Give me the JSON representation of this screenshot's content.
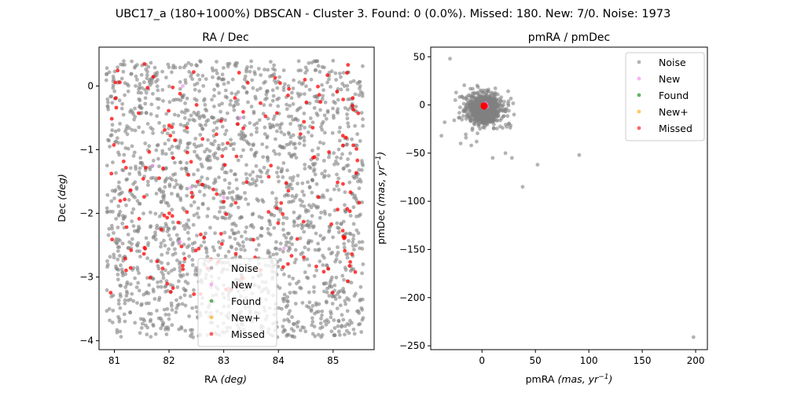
{
  "suptitle": "UBC17_a (180+1000%) DBSCAN - Cluster 3. Found: 0 (0.0%). Missed: 180. New: 7/0. Noise: 1973",
  "legend_labels": [
    "Noise",
    "New",
    "Found",
    "New+",
    "Missed"
  ],
  "colors": {
    "noise": "#808080",
    "new": "#ee82ee",
    "found": "#008000",
    "new_plus": "#ffa500",
    "missed": "#ff0000"
  },
  "chart_data": [
    {
      "type": "scatter",
      "title": "RA / Dec",
      "xlabel": "RA ",
      "xlabel_unit": "deg",
      "ylabel": "Dec ",
      "ylabel_unit": "deg",
      "xlim": [
        80.72,
        85.75
      ],
      "ylim": [
        -4.14,
        0.61
      ],
      "xticks": [
        81,
        82,
        83,
        84,
        85
      ],
      "yticks": [
        0,
        -1,
        -2,
        -3,
        -4
      ],
      "xtick_labels": [
        "81",
        "82",
        "83",
        "84",
        "85"
      ],
      "ytick_labels": [
        "0",
        "−1",
        "−2",
        "−3",
        "−4"
      ],
      "legend_position": "lower center",
      "grid": false,
      "series": [
        {
          "name": "Noise",
          "key": "noise",
          "count": 1973,
          "region": {
            "x": [
              80.85,
              85.55
            ],
            "y": [
              -3.95,
              0.4
            ]
          }
        },
        {
          "name": "New",
          "key": "new",
          "points": [
            [
              82.25,
              0.0
            ],
            [
              82.2,
              -2.45
            ],
            [
              83.3,
              -0.5
            ],
            [
              81.7,
              -1.25
            ],
            [
              84.1,
              -2.55
            ],
            [
              83.0,
              -1.75
            ],
            [
              82.4,
              -1.6
            ]
          ]
        },
        {
          "name": "Found",
          "key": "found",
          "points": []
        },
        {
          "name": "New+",
          "key": "new_plus",
          "points": []
        },
        {
          "name": "Missed",
          "key": "missed",
          "count": 180,
          "region": {
            "x": [
              80.9,
              85.5
            ],
            "y": [
              -3.3,
              0.38
            ]
          }
        }
      ]
    },
    {
      "type": "scatter",
      "title": "pmRA / pmDec",
      "xlabel": "pmRA ",
      "xlabel_unit": "mas, yr",
      "ylabel": "pmDec ",
      "ylabel_unit": "mas, yr",
      "xlim": [
        -48,
        211
      ],
      "ylim": [
        -254,
        60
      ],
      "xticks": [
        0,
        50,
        100,
        150,
        200
      ],
      "yticks": [
        50,
        0,
        -50,
        -100,
        -150,
        -200,
        -250
      ],
      "xtick_labels": [
        "0",
        "50",
        "100",
        "150",
        "200"
      ],
      "ytick_labels": [
        "50",
        "0",
        "−50",
        "−100",
        "−150",
        "−200",
        "−250"
      ],
      "legend_position": "upper right",
      "grid": false,
      "series": [
        {
          "name": "Noise",
          "key": "noise",
          "count": 1973,
          "core": {
            "x": 2,
            "y": -5
          },
          "outliers": [
            [
              -30,
              48
            ],
            [
              -35,
              -18
            ],
            [
              -38,
              -32
            ],
            [
              -26,
              -16
            ],
            [
              -20,
              -40
            ],
            [
              -15,
              -34
            ],
            [
              22,
              -50
            ],
            [
              28,
              -55
            ],
            [
              38,
              -85
            ],
            [
              52,
              -62
            ],
            [
              91,
              -52
            ],
            [
              198,
              -241
            ],
            [
              -10,
              -42
            ],
            [
              30,
              -10
            ],
            [
              25,
              -20
            ],
            [
              10,
              -55
            ],
            [
              -5,
              -38
            ],
            [
              18,
              8
            ],
            [
              -25,
              5
            ]
          ]
        },
        {
          "name": "New",
          "key": "new",
          "points": [
            [
              3,
              -1
            ],
            [
              4,
              1
            ],
            [
              2,
              0
            ],
            [
              5,
              -2
            ],
            [
              1,
              1
            ],
            [
              3,
              2
            ],
            [
              4,
              0
            ]
          ]
        },
        {
          "name": "Found",
          "key": "found",
          "points": []
        },
        {
          "name": "New+",
          "key": "new_plus",
          "points": []
        },
        {
          "name": "Missed",
          "key": "missed",
          "count": 180,
          "core": {
            "x": 2,
            "y": -1
          }
        }
      ]
    }
  ]
}
